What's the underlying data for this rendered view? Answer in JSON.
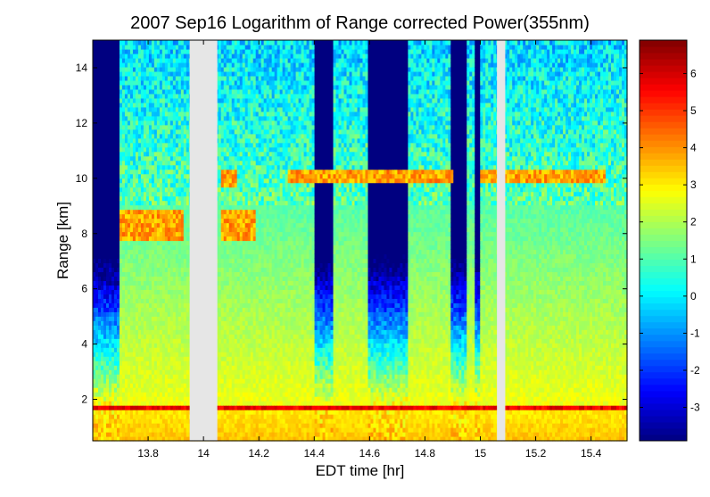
{
  "chart_data": {
    "type": "heatmap",
    "title": "2007 Sep16  Logarithm of Range corrected Power(355nm)",
    "xlabel": "EDT time [hr]",
    "ylabel": "Range [km]",
    "xlim": [
      13.6,
      15.53
    ],
    "ylim": [
      0.5,
      15.0
    ],
    "xticks": [
      13.8,
      14,
      14.2,
      14.4,
      14.6,
      14.8,
      15,
      15.2,
      15.4
    ],
    "xtick_labels": [
      "13.8",
      "14",
      "14.2",
      "14.4",
      "14.6",
      "14.8",
      "15",
      "15.2",
      "15.4"
    ],
    "yticks": [
      2,
      4,
      6,
      8,
      10,
      12,
      14
    ],
    "ytick_labels": [
      "2",
      "4",
      "6",
      "8",
      "10",
      "12",
      "14"
    ],
    "colorbar": {
      "range": [
        -3.9,
        6.9
      ],
      "ticks": [
        -3,
        -2,
        -1,
        0,
        1,
        2,
        3,
        4,
        5,
        6
      ],
      "tick_labels": [
        "-3",
        "-2",
        "-1",
        "0",
        "1",
        "2",
        "3",
        "4",
        "5",
        "6"
      ],
      "colormap": "jet"
    },
    "data_gaps_hr": [
      [
        13.95,
        14.05
      ],
      [
        15.06,
        15.09
      ]
    ],
    "clear_air_columns_hr": [
      [
        13.6,
        13.7
      ],
      [
        14.4,
        14.47
      ],
      [
        14.59,
        14.74
      ],
      [
        14.89,
        14.95
      ],
      [
        14.98,
        15.0
      ]
    ],
    "boundary_layer_top_km": 1.7,
    "cloud_layers": [
      {
        "t_start": 13.7,
        "t_end": 13.93,
        "z_bottom_km": 7.8,
        "z_top_km": 8.9
      },
      {
        "t_start": 14.06,
        "t_end": 14.19,
        "z_bottom_km": 7.8,
        "z_top_km": 8.8
      },
      {
        "t_start": 14.06,
        "t_end": 14.12,
        "z_bottom_km": 9.7,
        "z_top_km": 10.3
      },
      {
        "t_start": 14.3,
        "t_end": 14.9,
        "z_bottom_km": 9.9,
        "z_top_km": 10.3
      },
      {
        "t_start": 15.0,
        "t_end": 15.45,
        "z_bottom_km": 9.8,
        "z_top_km": 10.3
      }
    ],
    "colors": {
      "gap": "#e6e6e6",
      "axes": "#000000",
      "background": "#ffffff"
    }
  }
}
